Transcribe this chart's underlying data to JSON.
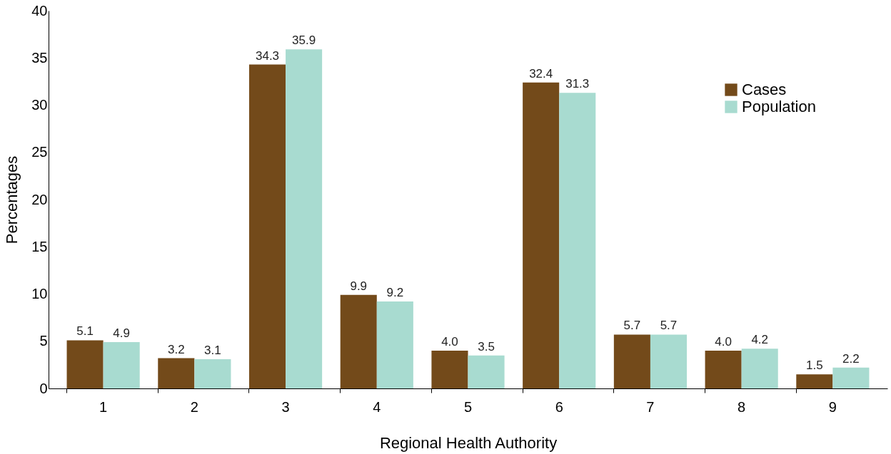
{
  "chart_data": {
    "type": "bar",
    "xlabel": "Regional Health Authority",
    "ylabel": "Percentages",
    "categories": [
      "1",
      "2",
      "3",
      "4",
      "5",
      "6",
      "7",
      "8",
      "9"
    ],
    "series": [
      {
        "name": "Cases",
        "color": "#734a1a",
        "values": [
          5.1,
          3.2,
          34.3,
          9.9,
          4.0,
          32.4,
          5.7,
          4.0,
          1.5
        ],
        "value_labels": [
          "5.1",
          "3.2",
          "34.3",
          "9.9",
          "4.0",
          "32.4",
          "5.7",
          "4.0",
          "1.5"
        ]
      },
      {
        "name": "Population",
        "color": "#a8dbd0",
        "values": [
          4.9,
          3.1,
          35.9,
          9.2,
          3.5,
          31.3,
          5.7,
          4.2,
          2.2
        ],
        "value_labels": [
          "4.9",
          "3.1",
          "35.9",
          "9.2",
          "3.5",
          "31.3",
          "5.7",
          "4.2",
          "2.2"
        ]
      }
    ],
    "ylim": [
      0,
      40
    ],
    "yticks": [
      0,
      5,
      10,
      15,
      20,
      25,
      30,
      35,
      40
    ],
    "grid": false,
    "legend": "top right"
  }
}
